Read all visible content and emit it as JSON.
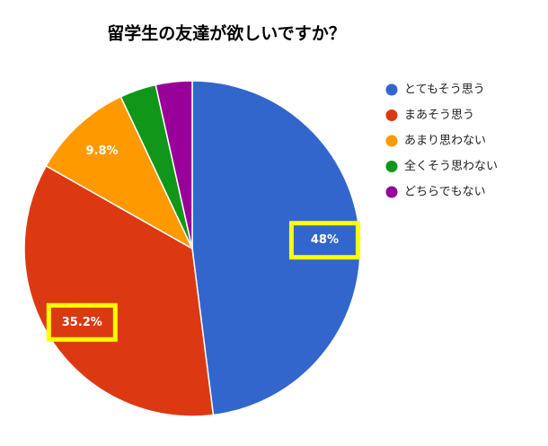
{
  "chart_data": {
    "type": "pie",
    "title": "留学生の友達が欲しいですか？",
    "categories": [
      "とてもそう思う",
      "まあそう思う",
      "あまり思わない",
      "全くそう思わない",
      "どちらでもない"
    ],
    "values": [
      48,
      35.2,
      9.8,
      3.5,
      3.5
    ],
    "value_labels": [
      "48%",
      "35.2%",
      "9.8%",
      null,
      null
    ],
    "colors": [
      "#3366cc",
      "#dc3912",
      "#ff9900",
      "#109618",
      "#990099"
    ],
    "highlighted": [
      0,
      1
    ],
    "legend": "right"
  }
}
